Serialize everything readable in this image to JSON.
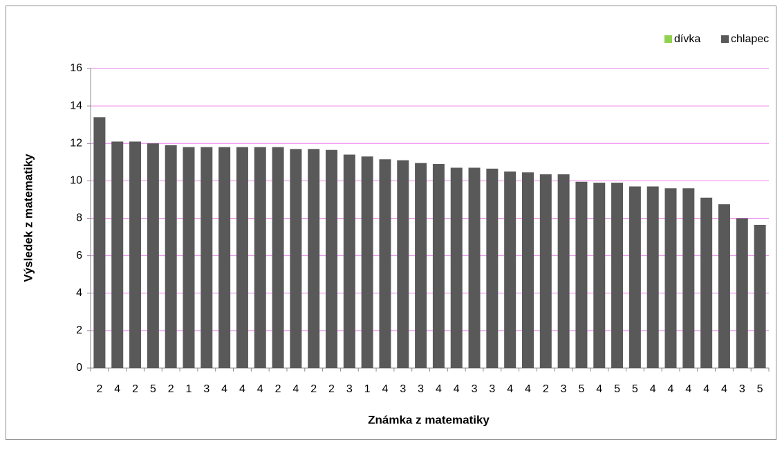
{
  "chart_data": {
    "type": "bar",
    "y_label": "Výsledek z matematiky",
    "x_label": "Známka z matematiky",
    "categories": [
      "2",
      "4",
      "2",
      "5",
      "2",
      "1",
      "3",
      "4",
      "4",
      "4",
      "2",
      "4",
      "2",
      "2",
      "3",
      "1",
      "4",
      "3",
      "3",
      "4",
      "4",
      "3",
      "3",
      "4",
      "4",
      "2",
      "3",
      "5",
      "4",
      "5",
      "5",
      "4",
      "4",
      "4",
      "4",
      "4",
      "3",
      "5"
    ],
    "series": [
      {
        "name": "dívka",
        "color": "#92d050",
        "values": [
          null,
          null,
          null,
          null,
          null,
          null,
          null,
          null,
          null,
          null,
          null,
          null,
          null,
          null,
          null,
          null,
          null,
          null,
          null,
          null,
          null,
          null,
          null,
          null,
          null,
          null,
          null,
          null,
          null,
          null,
          null,
          null,
          null,
          null,
          null,
          null,
          null,
          null
        ]
      },
      {
        "name": "chlapec",
        "color": "#595959",
        "values": [
          13.4,
          12.1,
          12.1,
          12.0,
          11.9,
          11.8,
          11.8,
          11.8,
          11.8,
          11.8,
          11.8,
          11.7,
          11.7,
          11.65,
          11.4,
          11.3,
          11.15,
          11.1,
          10.95,
          10.9,
          10.7,
          10.7,
          10.65,
          10.5,
          10.45,
          10.35,
          10.35,
          9.95,
          9.9,
          9.9,
          9.7,
          9.7,
          9.6,
          9.6,
          9.1,
          8.75,
          8.0,
          7.65
        ]
      }
    ],
    "ylim": [
      0,
      16
    ],
    "yticks": [
      0,
      2,
      4,
      6,
      8,
      10,
      12,
      14,
      16
    ],
    "grid": true,
    "grid_color": "#ee82ee",
    "legend": "top-right"
  }
}
